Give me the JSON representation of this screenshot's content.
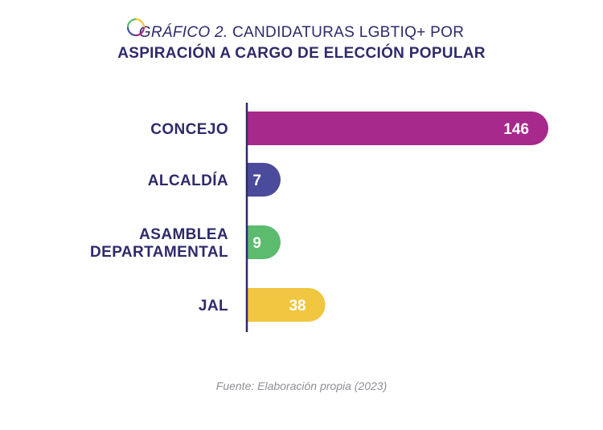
{
  "header": {
    "title_prefix": "GRÁFICO 2.",
    "title_line1_rest": " CANDIDATURAS LGBTIQ+ POR",
    "title_line2": "ASPIRACIÓN A CARGO DE ELECCIÓN POPULAR"
  },
  "chart_data": {
    "type": "bar",
    "orientation": "horizontal",
    "title": "GRÁFICO 2. CANDIDATURAS LGBTIQ+ POR ASPIRACIÓN A CARGO DE ELECCIÓN POPULAR",
    "categories": [
      [
        "CONCEJO"
      ],
      [
        "ALCALDÍA"
      ],
      [
        "ASAMBLEA",
        "DEPARTAMENTAL"
      ],
      [
        "JAL"
      ]
    ],
    "values": [
      146,
      7,
      9,
      38
    ],
    "value_labels": [
      "146",
      "7",
      "9",
      "38"
    ],
    "colors": [
      "#a7298c",
      "#4a4b9b",
      "#5dbb6e",
      "#f1c640"
    ],
    "xlim": [
      0,
      146
    ],
    "grid": false,
    "legend": "none",
    "source": "Fuente: Elaboración propia (2023)"
  },
  "colors": {
    "text": "#2e2a6b",
    "axis": "#2e2a6b",
    "source_text": "#8f8f95"
  }
}
